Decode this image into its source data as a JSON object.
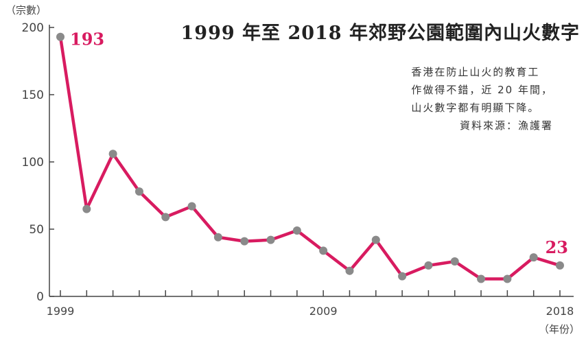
{
  "title": "1999 年至 2018 年郊野公園範圍內山火數字",
  "note": {
    "lines": [
      "香港在防止山火的教育工",
      "作做得不錯，近 20 年間，",
      "山火數字都有明顯下降。"
    ],
    "source": "資料來源：漁護署"
  },
  "colors": {
    "line": "#d81b60",
    "axis": "#444444",
    "point": "#8a8a8a",
    "label": "#d81b60"
  },
  "chart_data": {
    "type": "line",
    "title": "1999 年至 2018 年郊野公園範圍內山火數字",
    "ylabel": "（宗數）",
    "xlabel": "（年份）",
    "ylim": [
      0,
      200
    ],
    "yticks": [
      0,
      50,
      100,
      150,
      200
    ],
    "xticklabels": [
      "1999",
      "2009",
      "2018"
    ],
    "x": [
      1999,
      2000,
      2001,
      2002,
      2003,
      2004,
      2005,
      2006,
      2007,
      2008,
      2009,
      2010,
      2011,
      2012,
      2013,
      2014,
      2015,
      2016,
      2017,
      2018
    ],
    "series": [
      {
        "values": [
          193,
          65,
          106,
          78,
          59,
          67,
          44,
          41,
          42,
          49,
          34,
          19,
          42,
          15,
          23,
          26,
          13,
          13,
          29,
          23
        ]
      }
    ],
    "annotations": [
      {
        "x": 1999,
        "text": "193"
      },
      {
        "x": 2018,
        "text": "23"
      }
    ],
    "grid": false
  }
}
